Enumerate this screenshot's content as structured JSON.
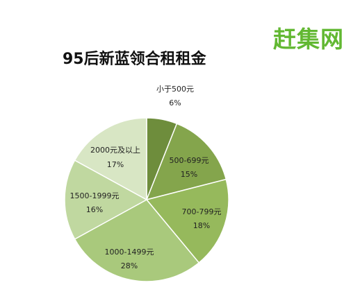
{
  "logo_text": "赶集网",
  "chart_data": {
    "type": "pie",
    "title": "95后新蓝领合租租金",
    "categories": [
      "小于500元",
      "500-699元",
      "700-799元",
      "1000-1499元",
      "1500-1999元",
      "2000元及以上"
    ],
    "values": [
      6,
      15,
      18,
      28,
      16,
      17
    ],
    "value_labels": [
      "6%",
      "15%",
      "18%",
      "28%",
      "16%",
      "17%"
    ],
    "colors": [
      "#6e8d3c",
      "#84a54c",
      "#96b95c",
      "#a9c97c",
      "#c0d8a0",
      "#d8e6c4"
    ],
    "legend": "none"
  }
}
